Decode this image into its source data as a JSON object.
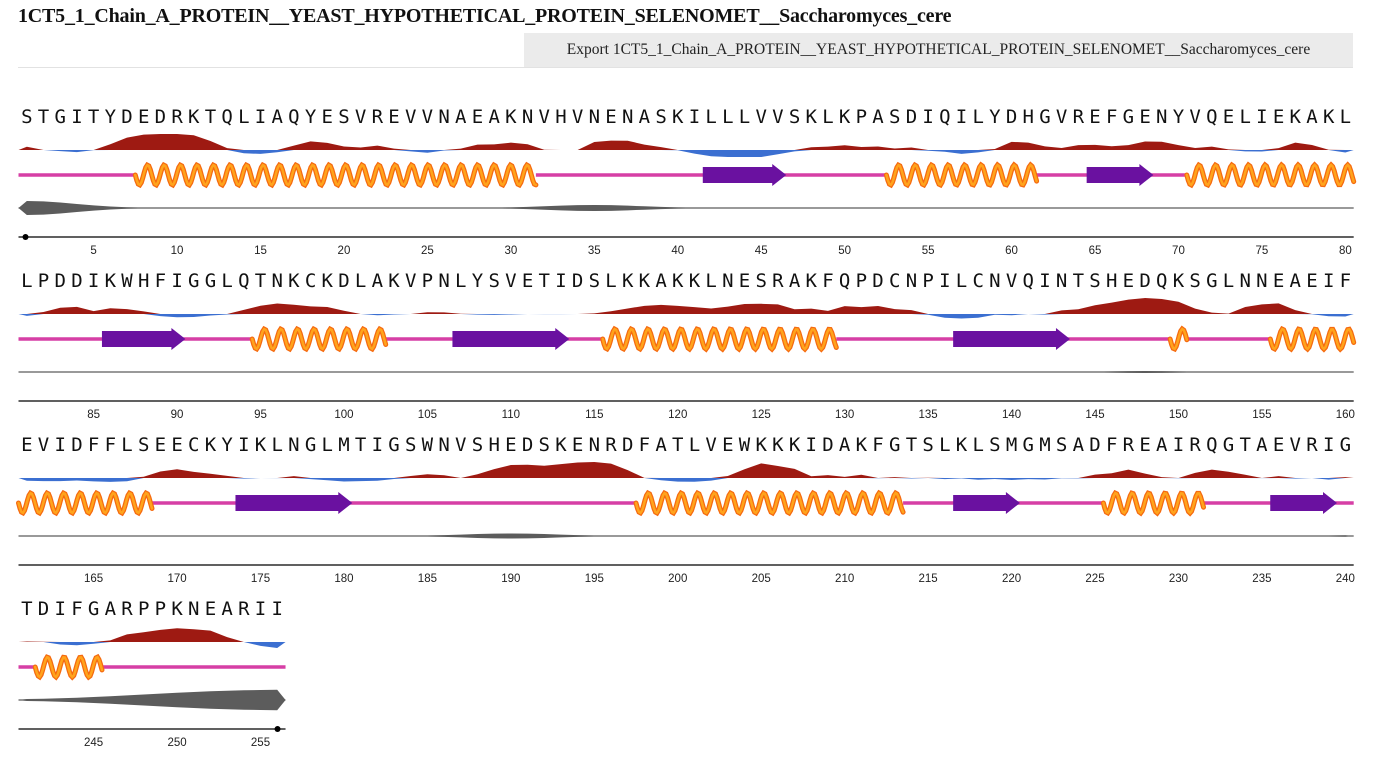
{
  "title": "1CT5_1_Chain_A_PROTEIN__YEAST_HYPOTHETICAL_PROTEIN_SELENOMET__Saccharomyces_cere",
  "export_label": "Export 1CT5_1_Chain_A_PROTEIN__YEAST_HYPOTHETICAL_PROTEIN_SELENOMET__Saccharomyces_cere",
  "sequence": "STGITYDEDRKTQLIAQYESVREVVNAEAKNVHVNENASKILLLVVSKLKPASDIQILYDHGVREFGENYVQELIEKAKLLPDDIKWHFIGGLQTNKCKDLAKVPNLYSVETIDSLKKAKKLNESRAKFQPDCNPILCNVQINTSHEDQKSGLNNEAEIFEVIDFFLSEECKYIKLNGLMTIGSWNVSHEDSKENRDFATLVEWKKKIDAKFGTSLKLSMGMSADFREAIRQGTAEVRIGTDIFGARPPKNEARII",
  "residues_per_row": 80,
  "tick_step": 5,
  "secondary_structure": {
    "helices": [
      [
        8,
        31
      ],
      [
        53,
        61
      ],
      [
        71,
        80
      ],
      [
        95,
        102
      ],
      [
        116,
        129
      ],
      [
        150,
        150
      ],
      [
        156,
        168
      ],
      [
        198,
        213
      ],
      [
        226,
        231
      ],
      [
        242,
        245
      ]
    ],
    "strands": [
      [
        42,
        46
      ],
      [
        65,
        68
      ],
      [
        86,
        90
      ],
      [
        107,
        113
      ],
      [
        137,
        143
      ],
      [
        174,
        180
      ],
      [
        217,
        220
      ],
      [
        236,
        239
      ]
    ]
  },
  "colors": {
    "hydro_positive": "#9e1a12",
    "hydro_negative": "#3b6fd1",
    "coil": "#d63fa5",
    "helix_light": "#ffa41c",
    "helix_dark": "#f56a10",
    "strand": "#6a11a0",
    "disorder": "#5c5c5c",
    "axis": "#000000"
  }
}
